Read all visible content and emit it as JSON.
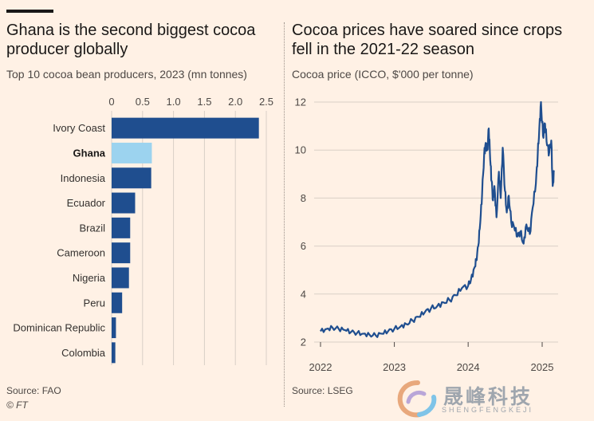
{
  "left": {
    "title": "Ghana is the second biggest cocoa producer globally",
    "subtitle": "Top 10 cocoa bean producers, 2023 (mn tonnes)",
    "source": "Source: FAO",
    "credit": "© FT"
  },
  "right": {
    "title": "Cocoa prices have soared since crops fell in the 2021-22 season",
    "subtitle": "Cocoa price (ICCO, $'000 per tonne)",
    "source": "Source: LSEG"
  },
  "watermark": {
    "text": "晟峰科技",
    "sub": "SHENGFENGKEJI"
  },
  "colors": {
    "bar": "#1f4e8f",
    "highlight": "#9cd3ef",
    "line": "#1f4e8f",
    "background": "#fff1e5"
  },
  "chart_data": [
    {
      "type": "bar",
      "orientation": "horizontal",
      "categories": [
        "Ivory Coast",
        "Ghana",
        "Indonesia",
        "Ecuador",
        "Brazil",
        "Cameroon",
        "Nigeria",
        "Peru",
        "Dominican Republic",
        "Colombia"
      ],
      "values": [
        2.38,
        0.65,
        0.64,
        0.38,
        0.3,
        0.3,
        0.28,
        0.17,
        0.07,
        0.06
      ],
      "highlight": "Ghana",
      "xlim": [
        0,
        2.5
      ],
      "xticks": [
        "0",
        "0.5",
        "1.0",
        "1.5",
        "2.0",
        "2.5"
      ],
      "grid": true
    },
    {
      "type": "line",
      "ylim": [
        2,
        12
      ],
      "yticks": [
        "2",
        "4",
        "6",
        "8",
        "10",
        "12"
      ],
      "xlim": [
        "2022-01-01",
        "2025-03-01"
      ],
      "xticks": [
        "2022",
        "2023",
        "2024",
        "2025"
      ],
      "grid": true,
      "series": [
        {
          "x": [
            "2022-01-01",
            "2022-02-01",
            "2022-03-01",
            "2022-04-01",
            "2022-05-01",
            "2022-06-01",
            "2022-07-01",
            "2022-08-01",
            "2022-09-01",
            "2022-10-01",
            "2022-11-01",
            "2022-12-01",
            "2023-01-01",
            "2023-02-01",
            "2023-03-01",
            "2023-04-01",
            "2023-05-01",
            "2023-06-01",
            "2023-07-01",
            "2023-08-01",
            "2023-09-01",
            "2023-10-01",
            "2023-11-01",
            "2023-12-01",
            "2024-01-01",
            "2024-01-15",
            "2024-02-01",
            "2024-02-10",
            "2024-02-20",
            "2024-03-01",
            "2024-03-10",
            "2024-03-20",
            "2024-03-28",
            "2024-04-05",
            "2024-04-12",
            "2024-04-19",
            "2024-04-26",
            "2024-05-03",
            "2024-05-10",
            "2024-05-20",
            "2024-06-01",
            "2024-06-10",
            "2024-06-20",
            "2024-07-01",
            "2024-07-10",
            "2024-07-20",
            "2024-08-01",
            "2024-08-15",
            "2024-09-01",
            "2024-09-15",
            "2024-10-01",
            "2024-10-15",
            "2024-11-01",
            "2024-11-15",
            "2024-12-01",
            "2024-12-10",
            "2024-12-18",
            "2024-12-26",
            "2025-01-05",
            "2025-01-15",
            "2025-01-25",
            "2025-02-05",
            "2025-02-15",
            "2025-02-22",
            "2025-03-01"
          ],
          "values": [
            2.45,
            2.55,
            2.6,
            2.55,
            2.5,
            2.42,
            2.38,
            2.35,
            2.3,
            2.28,
            2.35,
            2.45,
            2.55,
            2.65,
            2.75,
            2.9,
            3.05,
            3.25,
            3.4,
            3.5,
            3.65,
            3.75,
            3.95,
            4.25,
            4.35,
            4.6,
            5.1,
            5.4,
            6.0,
            7.0,
            8.2,
            9.8,
            10.3,
            10.0,
            10.9,
            9.6,
            8.7,
            7.9,
            8.5,
            7.2,
            9.1,
            8.0,
            10.1,
            8.3,
            7.4,
            8.1,
            7.0,
            6.8,
            6.4,
            6.6,
            6.1,
            6.9,
            6.5,
            7.6,
            8.6,
            9.8,
            10.9,
            12.0,
            10.6,
            11.1,
            10.2,
            9.9,
            10.4,
            8.5,
            9.1
          ]
        }
      ]
    }
  ]
}
